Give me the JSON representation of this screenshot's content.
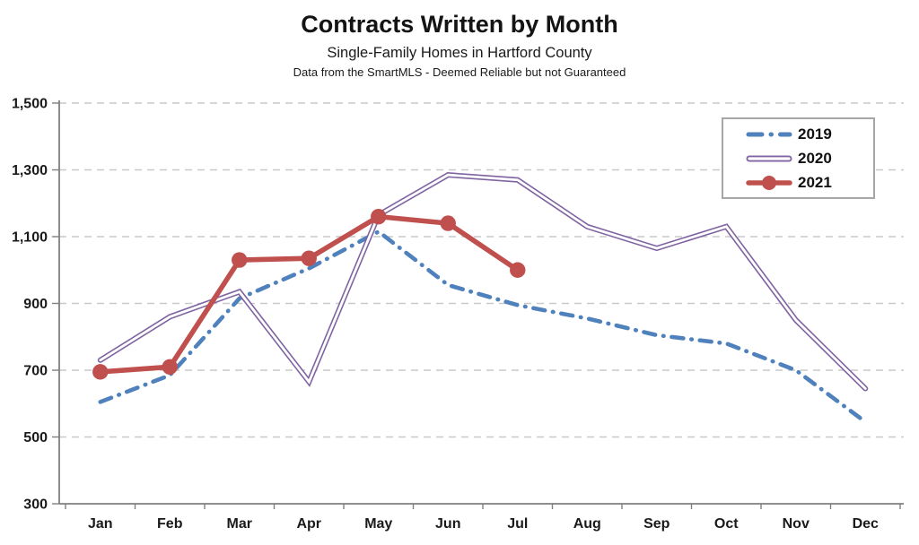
{
  "header": {
    "title": "Contracts Written by Month",
    "subtitle": "Single-Family Homes in Hartford County",
    "note": "Data from the SmartMLS - Deemed Reliable but not Guaranteed"
  },
  "chart_data": {
    "type": "line",
    "title": "Contracts Written by Month",
    "subtitle": "Single-Family Homes in Hartford County",
    "note": "Data from the SmartMLS - Deemed Reliable but not Guaranteed",
    "categories": [
      "Jan",
      "Feb",
      "Mar",
      "Apr",
      "May",
      "Jun",
      "Jul",
      "Aug",
      "Sep",
      "Oct",
      "Nov",
      "Dec"
    ],
    "ylim": [
      300,
      1500
    ],
    "ytick_step": 200,
    "ytick_labels": [
      "300",
      "500",
      "700",
      "900",
      "1,100",
      "1,300",
      "1,500"
    ],
    "grid": true,
    "legend_position": "top-right",
    "series": [
      {
        "name": "2019",
        "color": "#4F81BD",
        "line_style": "dash-dot",
        "marker": "none",
        "values": [
          605,
          685,
          915,
          1005,
          1115,
          955,
          895,
          855,
          805,
          780,
          700,
          545
        ]
      },
      {
        "name": "2020",
        "color": "#8064A2",
        "line_style": "outline",
        "marker": "none",
        "values": [
          730,
          860,
          935,
          665,
          1165,
          1285,
          1270,
          1130,
          1065,
          1130,
          850,
          645
        ]
      },
      {
        "name": "2021",
        "color": "#C0504D",
        "line_style": "solid",
        "marker": "circle",
        "values": [
          695,
          710,
          1030,
          1035,
          1160,
          1140,
          1000,
          null,
          null,
          null,
          null,
          null
        ]
      }
    ],
    "colors": {
      "gridline": "#c9c9c9",
      "axis": "#7f7f7f",
      "text": "#1a1a1a",
      "background": "#ffffff"
    }
  }
}
